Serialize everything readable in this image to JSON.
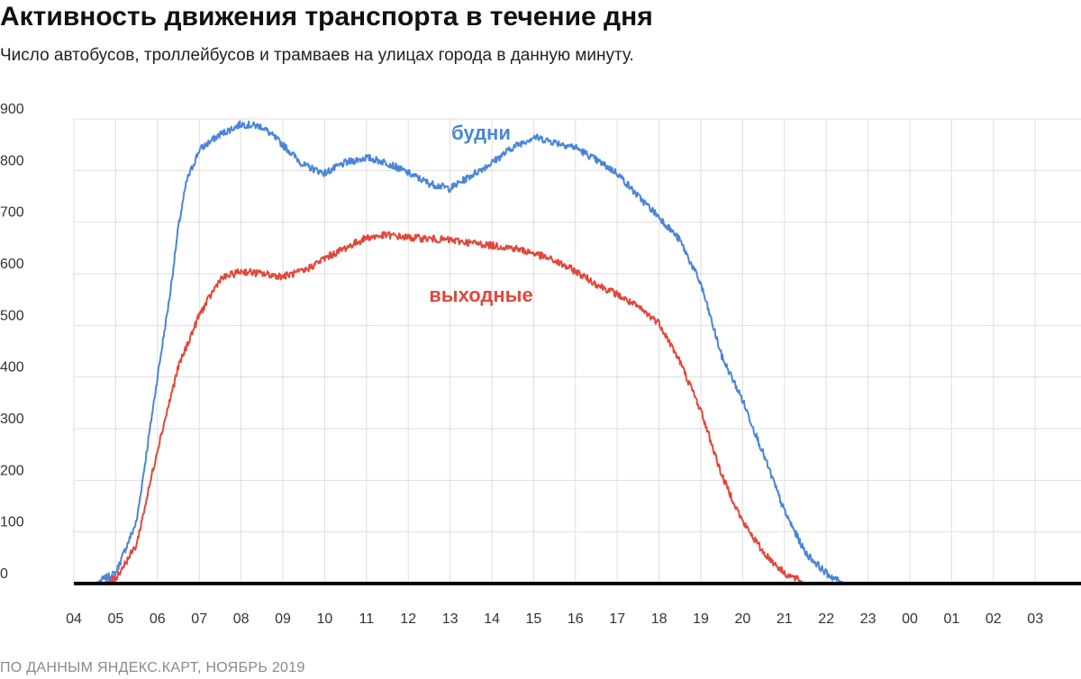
{
  "header": {
    "title": "Активность движения транспорта в течение дня",
    "subtitle": "Число автобусов, троллейбусов и трамваев на улицах города в данную минуту."
  },
  "footer": {
    "source": "ПО ДАННЫМ ЯНДЕКС.КАРТ, НОЯБРЬ 2019"
  },
  "chart_data": {
    "type": "line",
    "title": "Активность движения транспорта в течение дня",
    "subtitle": "Число автобусов, троллейбусов и трамваев на улицах города в данную минуту.",
    "xlabel": "",
    "ylabel": "",
    "x": [
      "04",
      "05",
      "06",
      "07",
      "08",
      "09",
      "10",
      "11",
      "12",
      "13",
      "14",
      "15",
      "16",
      "17",
      "18",
      "19",
      "20",
      "21",
      "22",
      "23",
      "00",
      "01",
      "02",
      "03"
    ],
    "ylim": [
      0,
      900
    ],
    "yticks": [
      "0",
      "100",
      "200",
      "300",
      "400",
      "500",
      "600",
      "700",
      "800",
      "900"
    ],
    "grid": true,
    "colors": {
      "weekdays": "#4a86d6",
      "weekend": "#e0483b",
      "axis": "#000000",
      "grid": "#dedede"
    },
    "series": [
      {
        "name": "будни",
        "color": "#4a86d6",
        "points": [
          [
            0,
            0
          ],
          [
            0.5,
            0
          ],
          [
            1,
            20
          ],
          [
            1.5,
            120
          ],
          [
            2,
            400
          ],
          [
            2.3,
            560
          ],
          [
            2.5,
            690
          ],
          [
            2.7,
            780
          ],
          [
            3,
            840
          ],
          [
            3.5,
            870
          ],
          [
            4,
            890
          ],
          [
            4.5,
            885
          ],
          [
            5,
            850
          ],
          [
            5.5,
            810
          ],
          [
            6,
            795
          ],
          [
            6.5,
            815
          ],
          [
            7,
            825
          ],
          [
            7.5,
            815
          ],
          [
            8,
            795
          ],
          [
            8.5,
            775
          ],
          [
            9,
            765
          ],
          [
            9.5,
            790
          ],
          [
            10,
            815
          ],
          [
            10.5,
            845
          ],
          [
            11,
            865
          ],
          [
            11.5,
            855
          ],
          [
            12,
            845
          ],
          [
            12.5,
            820
          ],
          [
            13,
            795
          ],
          [
            13.5,
            750
          ],
          [
            14,
            710
          ],
          [
            14.5,
            665
          ],
          [
            15,
            580
          ],
          [
            15.5,
            440
          ],
          [
            16,
            355
          ],
          [
            16.5,
            250
          ],
          [
            17,
            140
          ],
          [
            17.5,
            60
          ],
          [
            18,
            20
          ],
          [
            18.3,
            5
          ],
          [
            18.5,
            0
          ],
          [
            23,
            0
          ]
        ]
      },
      {
        "name": "выходные",
        "color": "#e0483b",
        "points": [
          [
            0,
            0
          ],
          [
            0.7,
            0
          ],
          [
            1,
            10
          ],
          [
            1.5,
            75
          ],
          [
            2,
            260
          ],
          [
            2.5,
            420
          ],
          [
            3,
            520
          ],
          [
            3.5,
            590
          ],
          [
            4,
            605
          ],
          [
            4.5,
            600
          ],
          [
            5,
            595
          ],
          [
            5.5,
            605
          ],
          [
            6,
            630
          ],
          [
            6.5,
            650
          ],
          [
            7,
            670
          ],
          [
            7.5,
            675
          ],
          [
            8,
            670
          ],
          [
            8.5,
            668
          ],
          [
            9,
            665
          ],
          [
            9.5,
            660
          ],
          [
            10,
            655
          ],
          [
            10.5,
            650
          ],
          [
            11,
            640
          ],
          [
            11.5,
            625
          ],
          [
            12,
            605
          ],
          [
            12.5,
            580
          ],
          [
            13,
            560
          ],
          [
            13.5,
            535
          ],
          [
            14,
            505
          ],
          [
            14.5,
            430
          ],
          [
            15,
            335
          ],
          [
            15.5,
            210
          ],
          [
            16,
            120
          ],
          [
            16.5,
            60
          ],
          [
            17,
            20
          ],
          [
            17.5,
            0
          ],
          [
            23,
            0
          ]
        ]
      }
    ],
    "annotations": [
      {
        "text": "будни",
        "series": "будни"
      },
      {
        "text": "выходные",
        "series": "выходные"
      }
    ]
  }
}
